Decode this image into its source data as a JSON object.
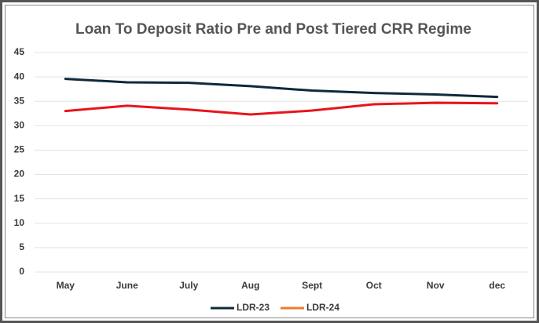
{
  "chart_data": {
    "type": "line",
    "title": "Loan To Deposit Ratio Pre and Post Tiered CRR Regime",
    "categories": [
      "May",
      "June",
      "July",
      "Aug",
      "Sept",
      "Oct",
      "Nov",
      "dec"
    ],
    "series": [
      {
        "name": "LDR-23",
        "color": "#0e2a3b",
        "values": [
          39.6,
          38.9,
          38.8,
          38.1,
          37.2,
          36.7,
          36.4,
          35.9
        ]
      },
      {
        "name": "LDR-24",
        "color": "#e8141c",
        "legend_color": "#f07a2a",
        "values": [
          33.0,
          34.1,
          33.3,
          32.3,
          33.1,
          34.4,
          34.7,
          34.6
        ]
      }
    ],
    "ylim": [
      0,
      45
    ],
    "yticks": [
      0,
      5,
      10,
      15,
      20,
      25,
      30,
      35,
      40,
      45
    ],
    "grid": true,
    "legend": "bottom"
  }
}
